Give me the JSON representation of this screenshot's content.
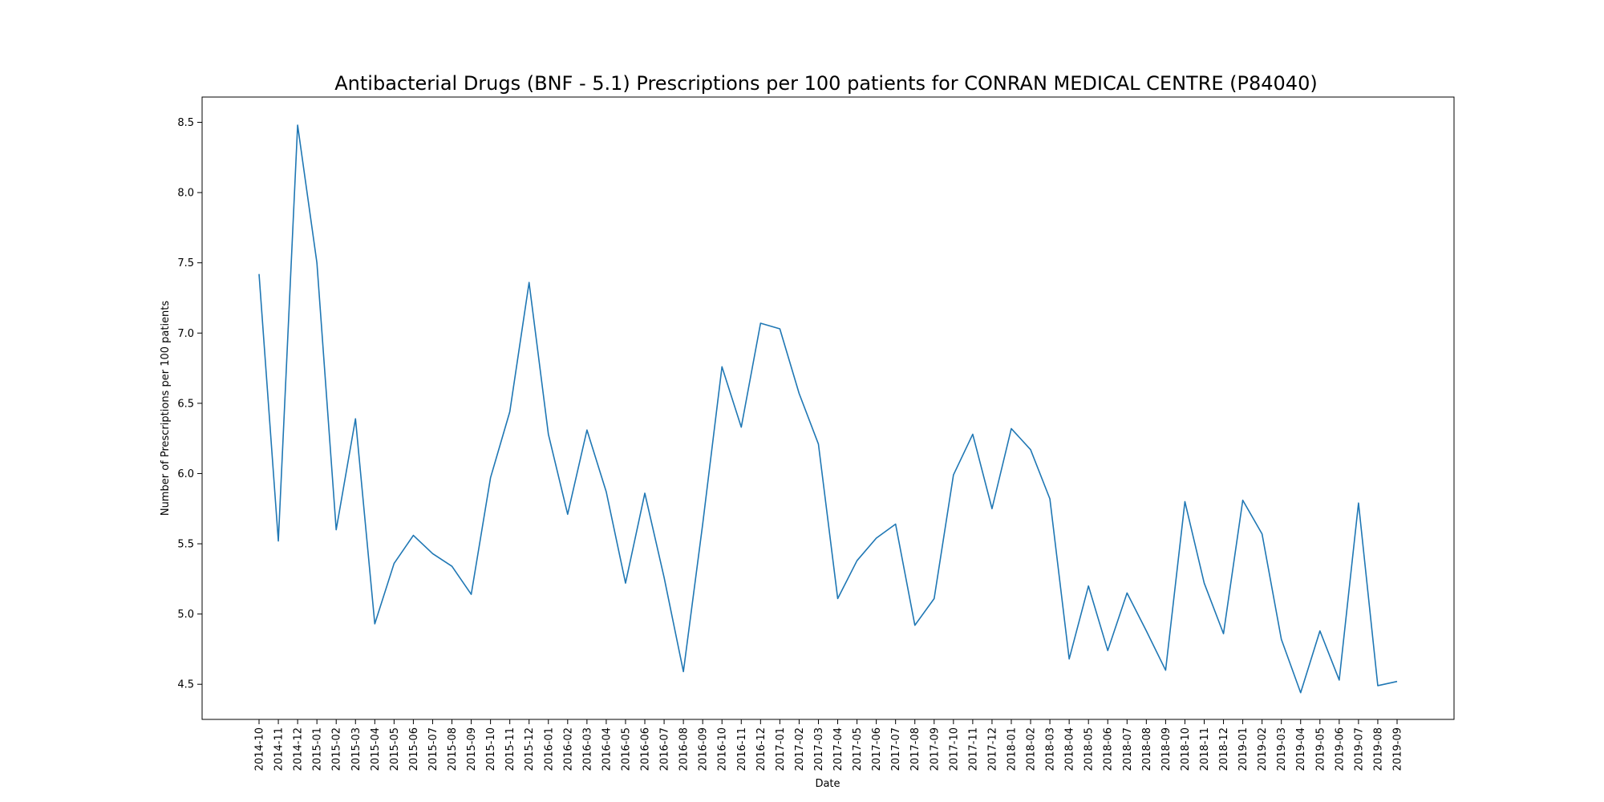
{
  "chart_data": {
    "type": "line",
    "title": "Antibacterial Drugs (BNF - 5.1) Prescriptions per 100 patients for CONRAN MEDICAL CENTRE (P84040)",
    "xlabel": "Date",
    "ylabel": "Number of Prescriptions per 100 patients",
    "ylim": [
      4.25,
      8.68
    ],
    "yticks": [
      "4.5",
      "5.0",
      "5.5",
      "6.0",
      "6.5",
      "7.0",
      "7.5",
      "8.0",
      "8.5"
    ],
    "grid": false,
    "line_color": "#1f77b4",
    "x": [
      "2014-10",
      "2014-11",
      "2014-12",
      "2015-01",
      "2015-02",
      "2015-03",
      "2015-04",
      "2015-05",
      "2015-06",
      "2015-07",
      "2015-08",
      "2015-09",
      "2015-10",
      "2015-11",
      "2015-12",
      "2016-01",
      "2016-02",
      "2016-03",
      "2016-04",
      "2016-05",
      "2016-06",
      "2016-07",
      "2016-08",
      "2016-09",
      "2016-10",
      "2016-11",
      "2016-12",
      "2017-01",
      "2017-02",
      "2017-03",
      "2017-04",
      "2017-05",
      "2017-06",
      "2017-07",
      "2017-08",
      "2017-09",
      "2017-10",
      "2017-11",
      "2017-12",
      "2018-01",
      "2018-02",
      "2018-03",
      "2018-04",
      "2018-05",
      "2018-06",
      "2018-07",
      "2018-08",
      "2018-09",
      "2018-10",
      "2018-11",
      "2018-12",
      "2019-01",
      "2019-02",
      "2019-03",
      "2019-04",
      "2019-05",
      "2019-06",
      "2019-07",
      "2019-08",
      "2019-09"
    ],
    "values": [
      7.42,
      5.52,
      8.48,
      7.5,
      5.6,
      6.39,
      4.93,
      5.36,
      5.56,
      5.43,
      5.34,
      5.14,
      5.97,
      6.44,
      7.36,
      6.28,
      5.71,
      6.31,
      5.87,
      5.22,
      5.86,
      5.26,
      4.59,
      5.64,
      6.76,
      6.33,
      7.07,
      7.03,
      6.57,
      6.21,
      5.11,
      5.38,
      5.54,
      5.64,
      4.92,
      5.11,
      5.99,
      6.28,
      5.75,
      6.32,
      6.17,
      5.82,
      4.68,
      5.2,
      4.74,
      5.15,
      4.88,
      4.6,
      5.8,
      5.22,
      4.86,
      5.81,
      5.57,
      4.82,
      4.44,
      4.88,
      4.53,
      5.79,
      4.49,
      4.52
    ]
  }
}
